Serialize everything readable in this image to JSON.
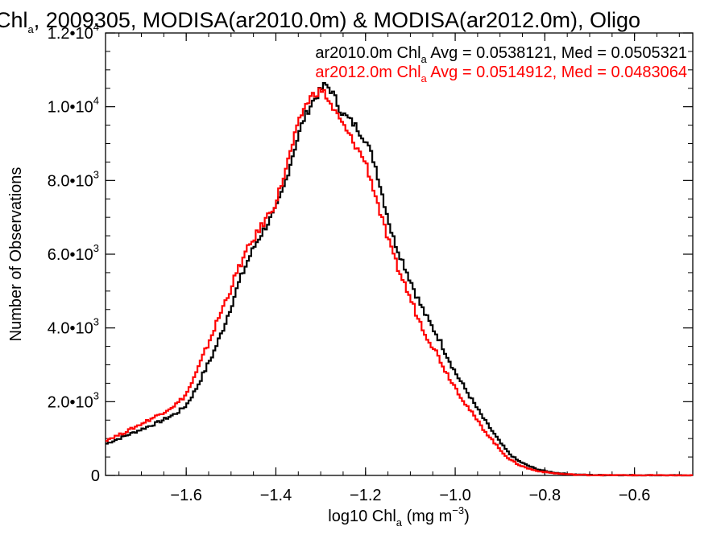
{
  "chart_data": {
    "type": "histogram-step",
    "title": {
      "prefix": "Chl",
      "prefix_sub": "a",
      "rest": ", 2009305, MODISA(ar2010.0m) & MODISA(ar2012.0m), Oligo"
    },
    "xlabel": {
      "pre": "log10 Chl",
      "sub": "a",
      "mid": " (mg m",
      "sup": "−3",
      "post": ")"
    },
    "ylabel": "Number of Observations",
    "xlim": [
      -1.78,
      -0.47
    ],
    "ylim": [
      0,
      12000
    ],
    "xticks": [
      {
        "value": -1.6,
        "label": "−1.6"
      },
      {
        "value": -1.4,
        "label": "−1.4"
      },
      {
        "value": -1.2,
        "label": "−1.2"
      },
      {
        "value": -1.0,
        "label": "−1.0"
      },
      {
        "value": -0.8,
        "label": "−0.8"
      },
      {
        "value": -0.6,
        "label": "−0.6"
      }
    ],
    "yticks": [
      {
        "value": 0,
        "mant": "0",
        "exp": ""
      },
      {
        "value": 2000,
        "mant": "2.0•10",
        "exp": "3"
      },
      {
        "value": 4000,
        "mant": "4.0•10",
        "exp": "3"
      },
      {
        "value": 6000,
        "mant": "6.0•10",
        "exp": "3"
      },
      {
        "value": 8000,
        "mant": "8.0•10",
        "exp": "3"
      },
      {
        "value": 10000,
        "mant": "1.0•10",
        "exp": "4"
      },
      {
        "value": 12000,
        "mant": "1.2•10",
        "exp": "4"
      }
    ],
    "series": [
      {
        "name": "ar2010.0m",
        "color": "#000000",
        "legend": {
          "pre": "ar2010.0m Chl",
          "sub": "a",
          "post": " Avg = 0.0538121, Med = 0.0505321"
        },
        "x": [
          -1.78,
          -1.74,
          -1.7,
          -1.66,
          -1.62,
          -1.6,
          -1.58,
          -1.56,
          -1.54,
          -1.52,
          -1.5,
          -1.48,
          -1.46,
          -1.44,
          -1.42,
          -1.4,
          -1.38,
          -1.36,
          -1.34,
          -1.32,
          -1.3,
          -1.29,
          -1.28,
          -1.27,
          -1.26,
          -1.25,
          -1.24,
          -1.22,
          -1.2,
          -1.18,
          -1.16,
          -1.14,
          -1.12,
          -1.1,
          -1.08,
          -1.06,
          -1.04,
          -1.02,
          -1.0,
          -0.98,
          -0.96,
          -0.94,
          -0.92,
          -0.9,
          -0.88,
          -0.86,
          -0.84,
          -0.82,
          -0.8,
          -0.78,
          -0.76,
          -0.74,
          -0.72,
          -0.7,
          -0.65,
          -0.6,
          -0.55,
          -0.5,
          -0.47
        ],
        "y": [
          850,
          1050,
          1250,
          1450,
          1700,
          1900,
          2300,
          2800,
          3300,
          3900,
          4600,
          5300,
          5900,
          6400,
          6800,
          7200,
          7900,
          8800,
          9600,
          10100,
          10450,
          10600,
          10500,
          10300,
          10000,
          9800,
          9700,
          9450,
          9100,
          8500,
          7500,
          6500,
          5900,
          5300,
          4700,
          4200,
          3800,
          3300,
          2800,
          2400,
          2000,
          1600,
          1250,
          900,
          600,
          400,
          280,
          180,
          120,
          80,
          50,
          30,
          20,
          12,
          8,
          5,
          3,
          2,
          1
        ]
      },
      {
        "name": "ar2012.0m",
        "color": "#ff0000",
        "legend": {
          "pre": "ar2012.0m Chl",
          "sub": "a",
          "post": " Avg = 0.0514912, Med = 0.0483064"
        },
        "x": [
          -1.78,
          -1.74,
          -1.7,
          -1.66,
          -1.62,
          -1.6,
          -1.58,
          -1.56,
          -1.54,
          -1.52,
          -1.5,
          -1.48,
          -1.46,
          -1.44,
          -1.42,
          -1.4,
          -1.38,
          -1.36,
          -1.34,
          -1.32,
          -1.3,
          -1.29,
          -1.28,
          -1.27,
          -1.26,
          -1.25,
          -1.24,
          -1.22,
          -1.2,
          -1.18,
          -1.16,
          -1.14,
          -1.12,
          -1.1,
          -1.08,
          -1.06,
          -1.04,
          -1.02,
          -1.0,
          -0.98,
          -0.96,
          -0.94,
          -0.92,
          -0.9,
          -0.88,
          -0.86,
          -0.84,
          -0.82,
          -0.8,
          -0.78,
          -0.76,
          -0.74,
          -0.72,
          -0.7,
          -0.65,
          -0.6,
          -0.55,
          -0.5,
          -0.47
        ],
        "y": [
          950,
          1150,
          1400,
          1650,
          1950,
          2200,
          2700,
          3300,
          3900,
          4500,
          5100,
          5700,
          6200,
          6600,
          7000,
          7400,
          8200,
          9100,
          9900,
          10300,
          10450,
          10350,
          10100,
          9900,
          9700,
          9500,
          9300,
          8900,
          8500,
          7700,
          6800,
          6000,
          5400,
          4800,
          4200,
          3700,
          3300,
          2800,
          2400,
          2000,
          1650,
          1300,
          1000,
          700,
          450,
          300,
          200,
          130,
          90,
          60,
          40,
          25,
          15,
          10,
          6,
          4,
          2,
          1,
          1
        ]
      }
    ]
  }
}
